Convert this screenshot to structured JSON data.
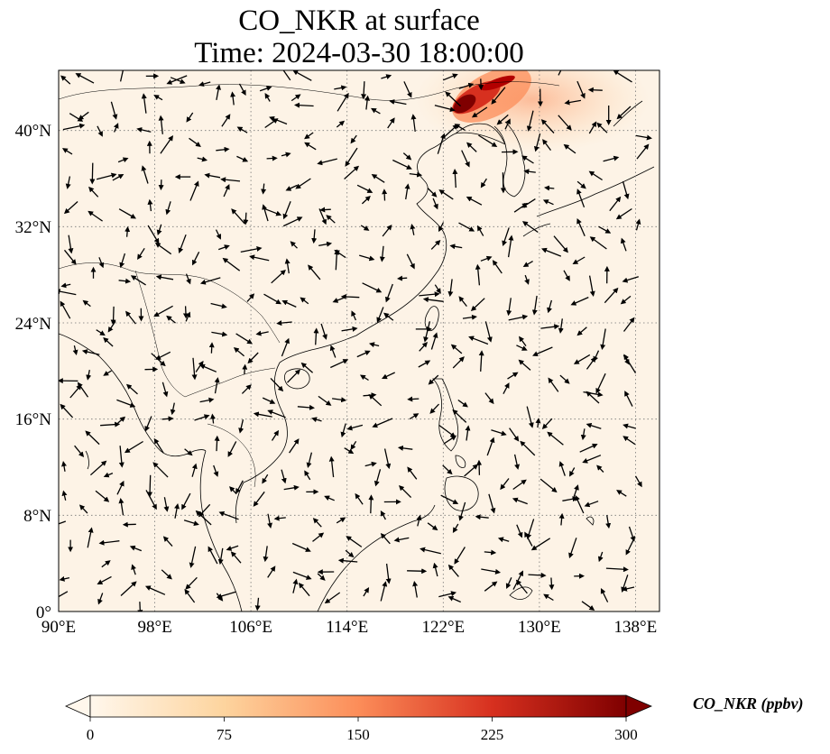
{
  "title": {
    "line1": "CO_NKR at surface",
    "line2": "Time: 2024-03-30 18:00:00"
  },
  "map": {
    "variable": "CO_NKR",
    "level": "surface",
    "time": "2024-03-30 18:00:00",
    "lon_range": [
      90,
      140
    ],
    "lat_range": [
      0,
      45
    ],
    "lon_ticks": [
      90,
      98,
      106,
      114,
      122,
      130,
      138
    ],
    "lon_tick_labels": [
      "90°E",
      "98°E",
      "106°E",
      "114°E",
      "122°E",
      "130°E",
      "138°E"
    ],
    "lat_ticks": [
      0,
      8,
      16,
      24,
      32,
      40
    ],
    "lat_tick_labels": [
      "0°",
      "8°N",
      "16°N",
      "24°N",
      "32°N",
      "40°N"
    ],
    "gridlines": "dotted",
    "background_color": "#fdf3e6",
    "wind_vectors": true
  },
  "colorbar": {
    "label": "CO_NKR (ppbv)",
    "min": 0,
    "max": 300,
    "ticks": [
      "0",
      "75",
      "150",
      "225",
      "300"
    ],
    "colormap": "OrRd",
    "colors": [
      "#fff7ec",
      "#fdd49e",
      "#fc8d59",
      "#d7301f",
      "#7f0000"
    ],
    "extend": "both"
  }
}
